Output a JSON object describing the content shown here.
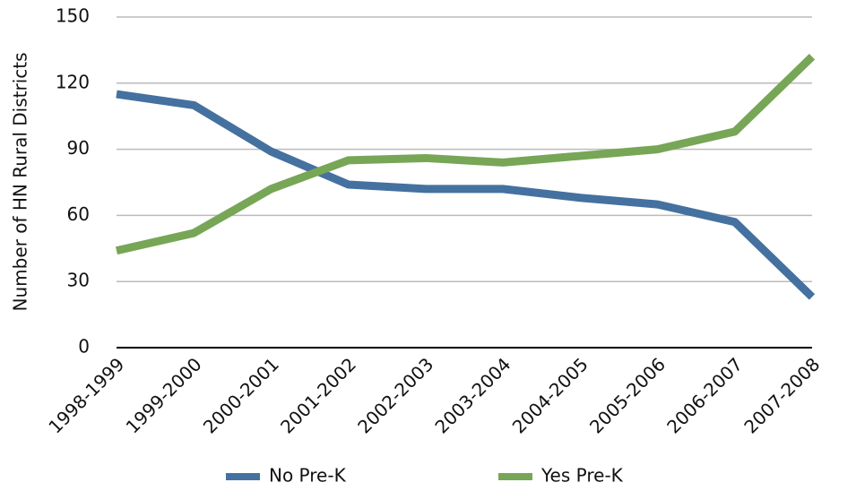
{
  "chart_data": {
    "type": "line",
    "y_label": "Number of HN Rural Districts",
    "categories": [
      "1998-1999",
      "1999-2000",
      "2000-2001",
      "2001-2002",
      "2002-2003",
      "2003-2004",
      "2004-2005",
      "2005-2006",
      "2006-2007",
      "2007-2008"
    ],
    "series": [
      {
        "name": "No Pre-K",
        "color": "#44719f",
        "values": [
          115,
          110,
          89,
          74,
          72,
          72,
          68,
          65,
          57,
          23
        ]
      },
      {
        "name": "Yes Pre-K",
        "color": "#77a656",
        "values": [
          44,
          52,
          72,
          85,
          86,
          84,
          87,
          90,
          98,
          132
        ]
      }
    ],
    "ylim": [
      0,
      150
    ],
    "yticks": [
      0,
      30,
      60,
      90,
      120,
      150
    ],
    "grid": true
  }
}
